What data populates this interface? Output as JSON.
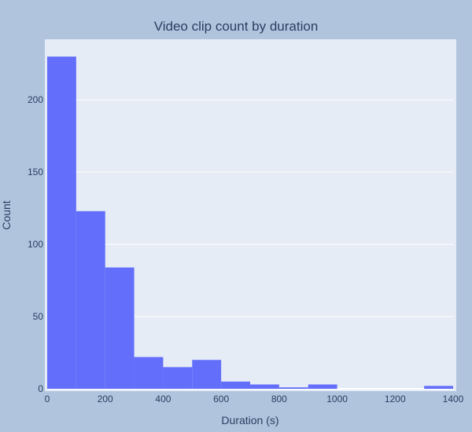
{
  "chart_data": {
    "type": "bar",
    "title": "Video clip count by duration",
    "xlabel": "Duration (s)",
    "ylabel": "Count",
    "xlim": [
      0,
      1400
    ],
    "ylim": [
      0,
      242
    ],
    "xticks": [
      0,
      200,
      400,
      600,
      800,
      1000,
      1200,
      1400
    ],
    "yticks": [
      0,
      50,
      100,
      150,
      200
    ],
    "bin_edges": [
      0,
      100,
      200,
      300,
      400,
      500,
      600,
      700,
      800,
      900,
      1000,
      1100,
      1200,
      1300,
      1400
    ],
    "values": [
      230,
      123,
      84,
      22,
      15,
      20,
      5,
      3,
      1,
      3,
      0,
      0,
      0,
      2
    ],
    "colors": {
      "bar": "#636efa",
      "plot_bg": "#e5ecf6",
      "paper_bg": "#b0c4de",
      "grid": "#ffffff",
      "text": "#2a3f5f"
    }
  }
}
